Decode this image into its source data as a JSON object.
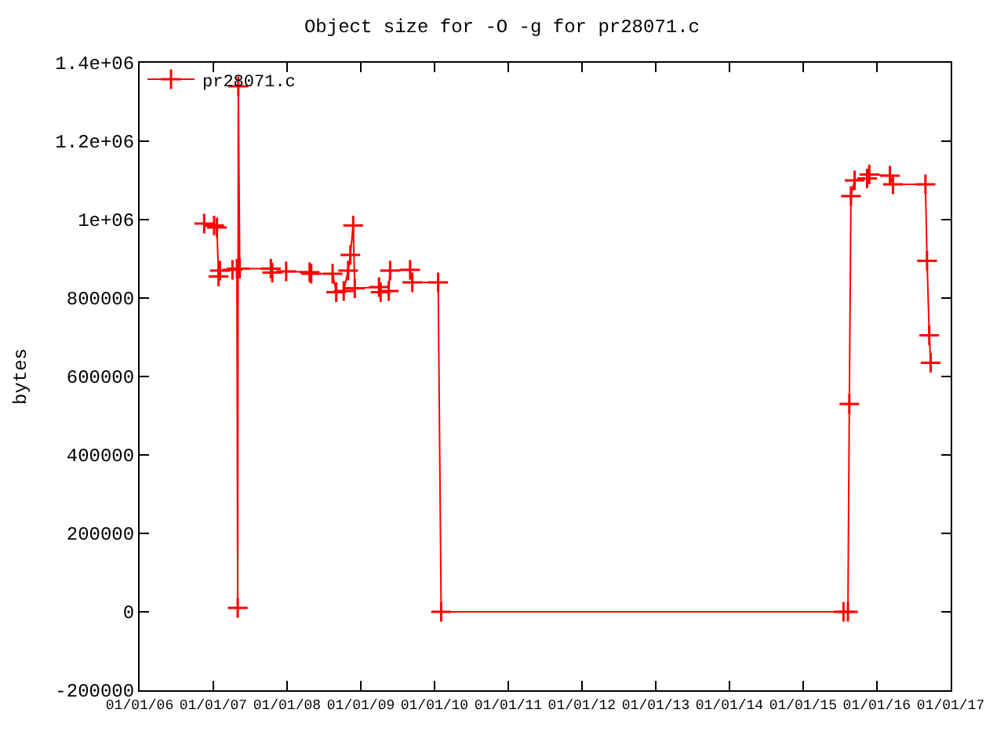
{
  "chart_data": {
    "type": "line",
    "title": "Object size for -O -g for pr28071.c",
    "ylabel": "bytes",
    "x": [
      "2006-11-17",
      "2007-01-05",
      "2007-01-19",
      "2007-01-27",
      "2007-02-03",
      "2007-04-06",
      "2007-04-28",
      "2007-05-02",
      "2007-05-05",
      "2007-05-12",
      "2007-10-13",
      "2007-10-20",
      "2007-12-28",
      "2008-04-22",
      "2008-04-30",
      "2008-08-14",
      "2008-09-01",
      "2008-10-08",
      "2008-10-30",
      "2008-11-10",
      "2008-11-24",
      "2008-12-02",
      "2009-04-01",
      "2009-04-09",
      "2009-05-19",
      "2009-05-26",
      "2009-09-02",
      "2009-09-13",
      "2010-01-19",
      "2010-02-03",
      "2015-07-20",
      "2015-08-11",
      "2015-08-18",
      "2015-08-26",
      "2015-09-13",
      "2015-11-14",
      "2015-11-25",
      "2016-03-06",
      "2016-03-21",
      "2016-08-29",
      "2016-09-06",
      "2016-09-17",
      "2016-09-24"
    ],
    "series": [
      {
        "name": "pr28071.c",
        "color": "#ff0000",
        "values": [
          990000,
          985000,
          980000,
          855000,
          870000,
          872000,
          875000,
          10000,
          1340000,
          875000,
          875000,
          865000,
          868000,
          866000,
          862000,
          862000,
          815000,
          818000,
          870000,
          910000,
          985000,
          825000,
          828000,
          815000,
          818000,
          870000,
          872000,
          840000,
          840000,
          0,
          0,
          0,
          530000,
          1060000,
          1100000,
          1105000,
          1115000,
          1112000,
          1090000,
          1090000,
          895000,
          705000,
          635000
        ]
      }
    ],
    "xlim": [
      "2006-01-01",
      "2017-01-01"
    ],
    "xticks": [
      {
        "value": "2006-01-01",
        "label": "01/01/06"
      },
      {
        "value": "2007-01-01",
        "label": "01/01/07"
      },
      {
        "value": "2008-01-01",
        "label": "01/01/08"
      },
      {
        "value": "2009-01-01",
        "label": "01/01/09"
      },
      {
        "value": "2010-01-01",
        "label": "01/01/10"
      },
      {
        "value": "2011-01-01",
        "label": "01/01/11"
      },
      {
        "value": "2012-01-01",
        "label": "01/01/12"
      },
      {
        "value": "2013-01-01",
        "label": "01/01/13"
      },
      {
        "value": "2014-01-01",
        "label": "01/01/14"
      },
      {
        "value": "2015-01-01",
        "label": "01/01/15"
      },
      {
        "value": "2016-01-01",
        "label": "01/01/16"
      },
      {
        "value": "2017-01-01",
        "label": "01/01/17"
      }
    ],
    "ylim": [
      -200000,
      1400000
    ],
    "yticks": [
      {
        "value": -200000,
        "label": "-200000"
      },
      {
        "value": 0,
        "label": "0"
      },
      {
        "value": 200000,
        "label": "200000"
      },
      {
        "value": 400000,
        "label": "400000"
      },
      {
        "value": 600000,
        "label": "600000"
      },
      {
        "value": 800000,
        "label": "800000"
      },
      {
        "value": 1000000,
        "label": "1e+06"
      },
      {
        "value": 1200000,
        "label": "1.2e+06"
      },
      {
        "value": 1400000,
        "label": "1.4e+06"
      }
    ],
    "legend": "top left",
    "marker": "cross",
    "line_style": "solid"
  }
}
